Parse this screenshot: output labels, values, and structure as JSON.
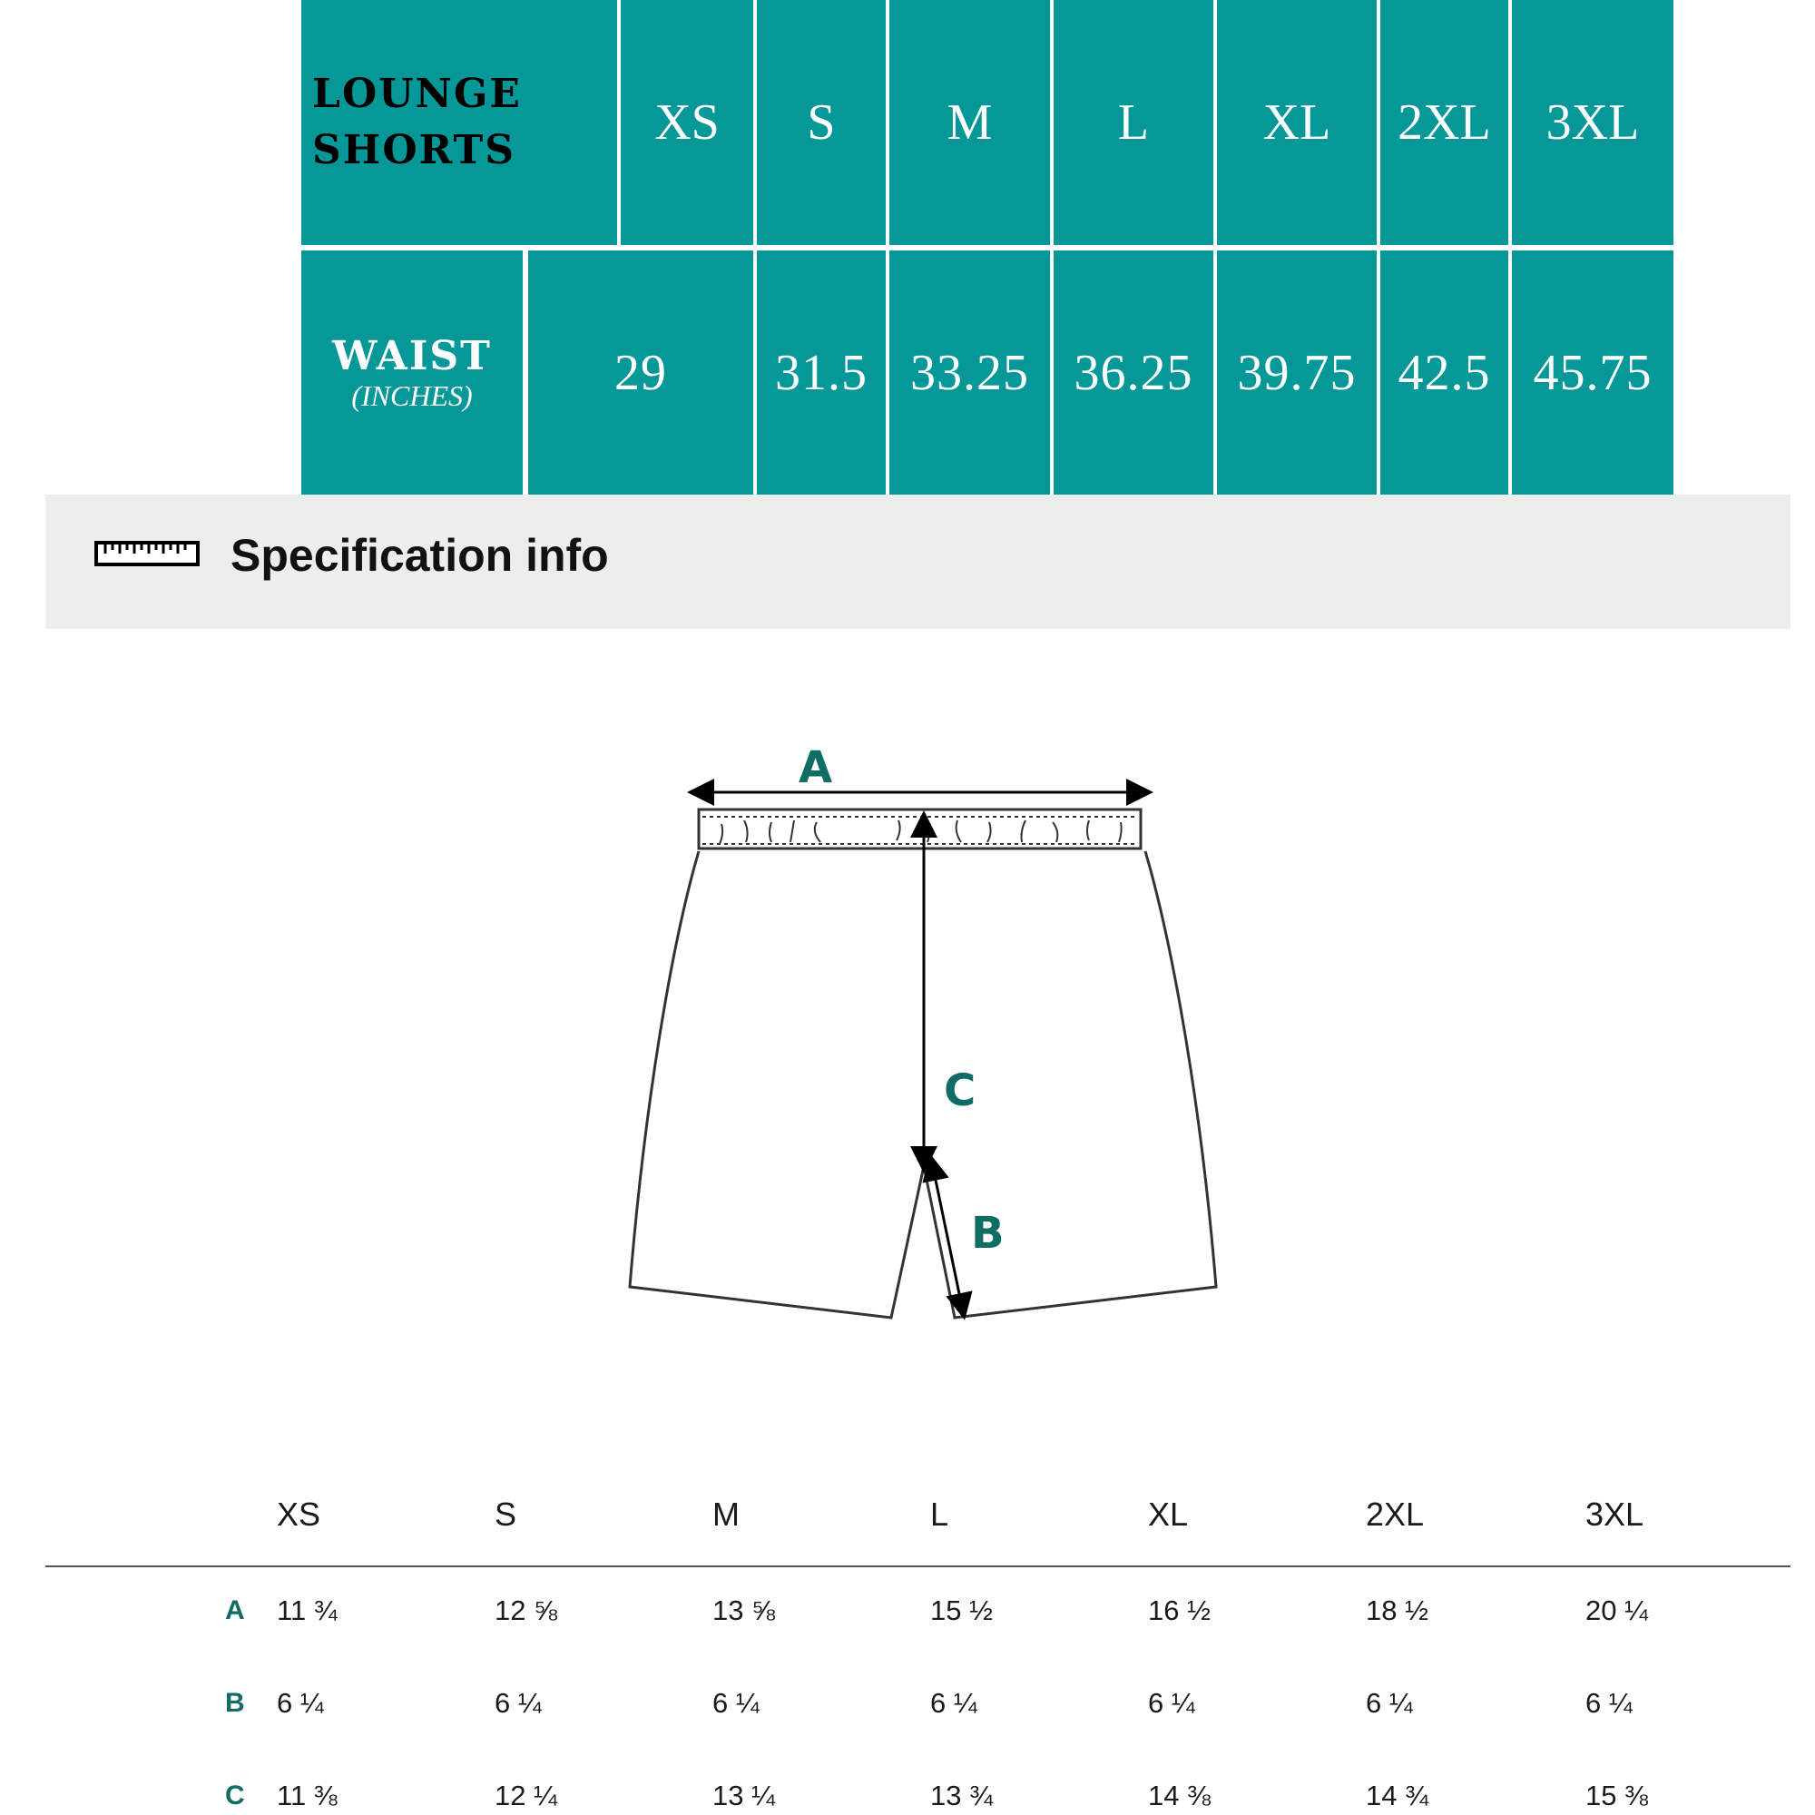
{
  "size_table": {
    "title_line1": "LOUNGE",
    "title_line2": "SHORTS",
    "sizes": [
      "XS",
      "S",
      "M",
      "L",
      "XL",
      "2XL",
      "3XL"
    ],
    "waist_label": "WAIST",
    "waist_unit": "(INCHES)",
    "waist_values": [
      "29",
      "31.5",
      "33.25",
      "36.25",
      "39.75",
      "42.5",
      "45.75"
    ],
    "colors": {
      "header_bg": "#069898",
      "text": "#ffffff"
    }
  },
  "spec_section": {
    "title": "Specification info",
    "icon": "ruler-icon"
  },
  "diagram": {
    "labels": {
      "a": "A",
      "b": "B",
      "c": "C"
    },
    "label_color": "#106d64"
  },
  "spec_table": {
    "sizes": [
      "XS",
      "S",
      "M",
      "L",
      "XL",
      "2XL",
      "3XL"
    ],
    "rows": [
      {
        "label": "A",
        "values": [
          "11 ¾",
          "12 ⅝",
          "13 ⅝",
          "15 ½",
          "16 ½",
          "18 ½",
          "20 ¼"
        ]
      },
      {
        "label": "B",
        "values": [
          "6 ¼",
          "6 ¼",
          "6 ¼",
          "6 ¼",
          "6 ¼",
          "6 ¼",
          "6 ¼"
        ]
      },
      {
        "label": "C",
        "values": [
          "11 ⅜",
          "12 ¼",
          "13 ¼",
          "13 ¾",
          "14 ⅜",
          "14 ¾",
          "15 ⅜"
        ]
      }
    ]
  }
}
